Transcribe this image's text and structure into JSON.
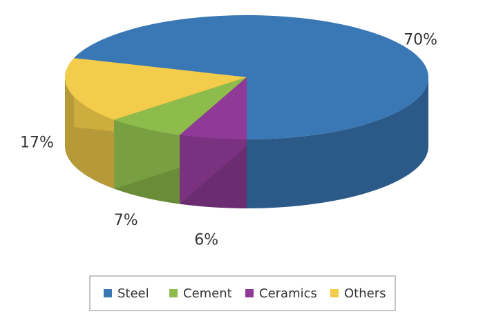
{
  "chart_data": {
    "type": "pie3d",
    "categories": [
      "Steel",
      "Cement",
      "Ceramics",
      "Others"
    ],
    "values": [
      70,
      7,
      6,
      17
    ],
    "value_labels": [
      "70%",
      "7%",
      "6%",
      "17%"
    ],
    "colors": [
      "#3a78b5",
      "#8dbb4c",
      "#8e3a96",
      "#f2cc4a"
    ],
    "legend": "bottom"
  }
}
